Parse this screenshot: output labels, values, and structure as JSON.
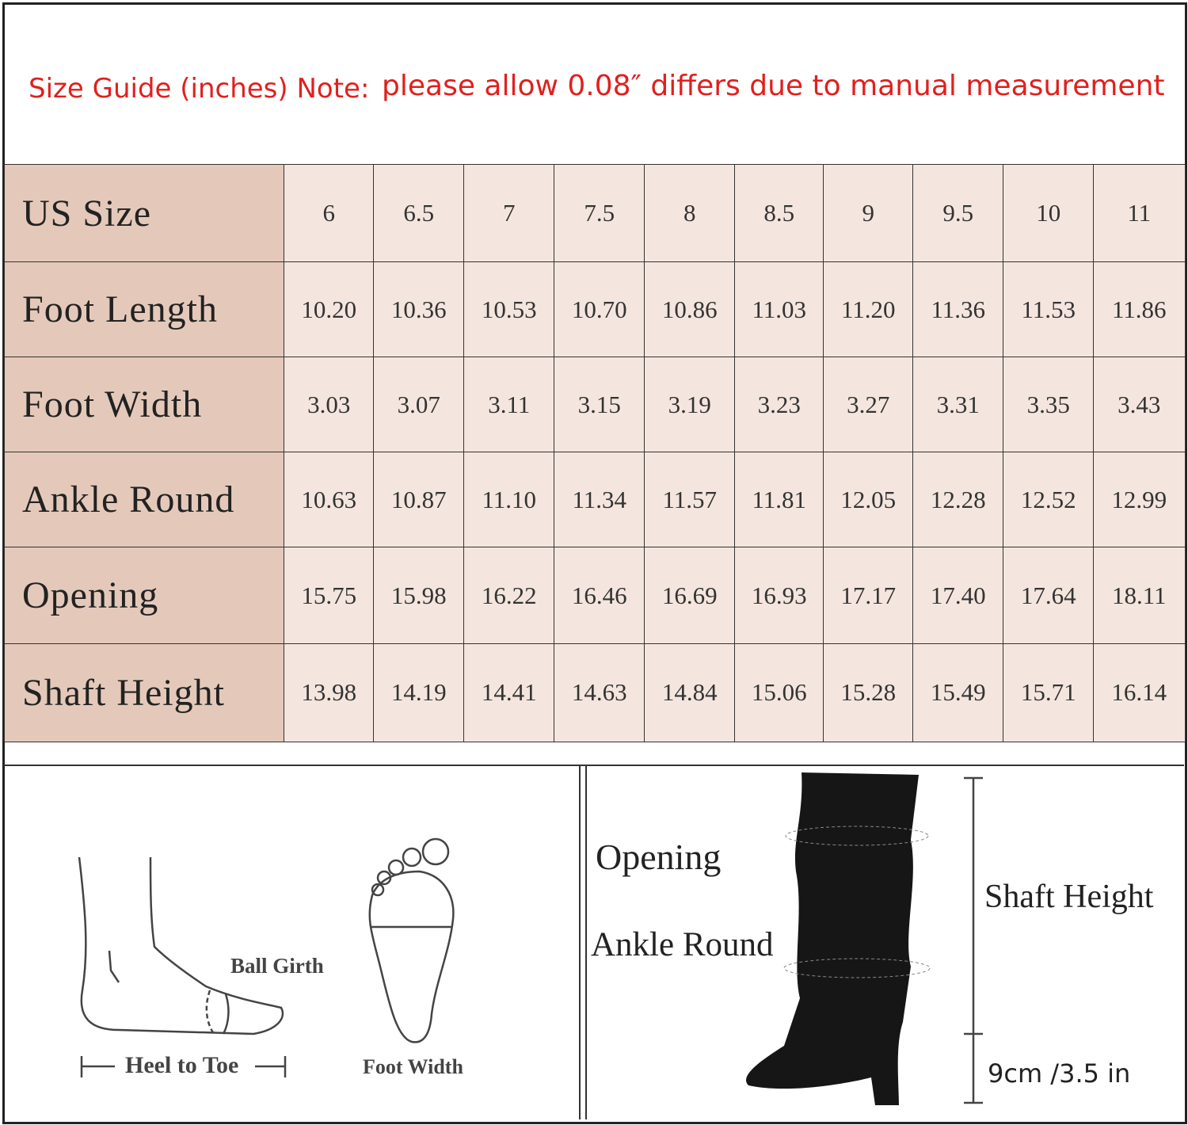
{
  "header": {
    "title": "Size Guide (inches) Note:",
    "note": "please allow 0.08″ differs due to manual measurement"
  },
  "table": {
    "rows": [
      [
        "US Size",
        "6",
        "6.5",
        "7",
        "7.5",
        "8",
        "8.5",
        "9",
        "9.5",
        "10",
        "11"
      ],
      [
        "Foot Length",
        "10.20",
        "10.36",
        "10.53",
        "10.70",
        "10.86",
        "11.03",
        "11.20",
        "11.36",
        "11.53",
        "11.86"
      ],
      [
        "Foot Width",
        "3.03",
        "3.07",
        "3.11",
        "3.15",
        "3.19",
        "3.23",
        "3.27",
        "3.31",
        "3.35",
        "3.43"
      ],
      [
        "Ankle Round",
        "10.63",
        "10.87",
        "11.10",
        "11.34",
        "11.57",
        "11.81",
        "12.05",
        "12.28",
        "12.52",
        "12.99"
      ],
      [
        "Opening",
        "15.75",
        "15.98",
        "16.22",
        "16.46",
        "16.69",
        "16.93",
        "17.17",
        "17.40",
        "17.64",
        "18.11"
      ],
      [
        "Shaft Height",
        "13.98",
        "14.19",
        "14.41",
        "14.63",
        "14.84",
        "15.06",
        "15.28",
        "15.49",
        "15.71",
        "16.14"
      ]
    ]
  },
  "diagram": {
    "ball_girth": "Ball Girth",
    "heel_to_toe": "Heel to Toe",
    "foot_width": "Foot Width",
    "opening": "Opening",
    "ankle_round": "Ankle Round",
    "shaft_height": "Shaft Height",
    "heel_height": "9cm /3.5 in"
  }
}
